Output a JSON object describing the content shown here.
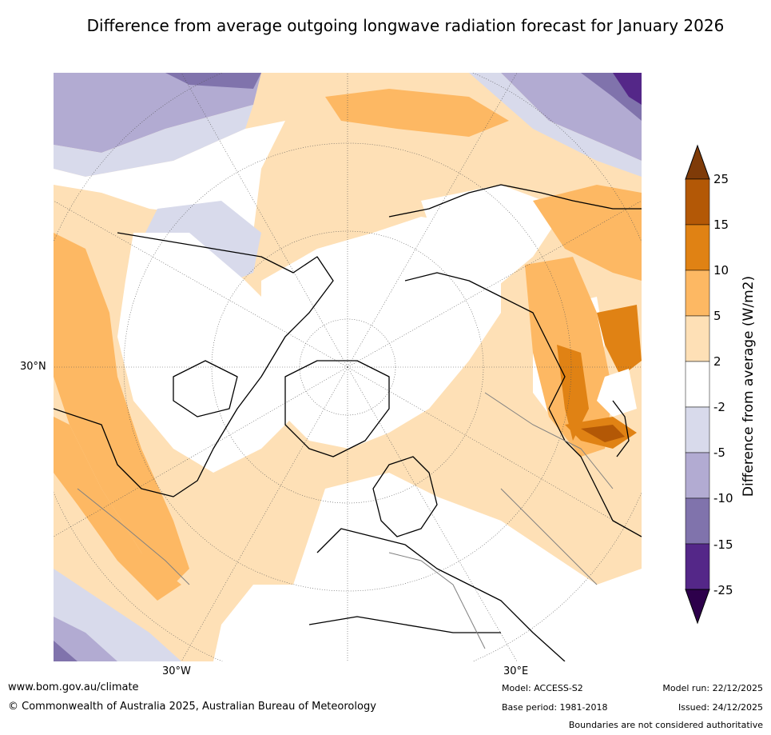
{
  "title": "Difference from average outgoing longwave radiation forecast for January 2026",
  "map": {
    "projection_labels": {
      "lat_30n": "30°N",
      "lon_30w": "30°W",
      "lon_30e": "30°E"
    }
  },
  "colorbar": {
    "title": "Difference from average (W/m2)",
    "ticks": [
      "25",
      "15",
      "10",
      "5",
      "2",
      "-2",
      "-5",
      "-10",
      "-15",
      "-25"
    ],
    "colors": {
      "gt25": "#7f3b08",
      "15_25": "#b35806",
      "10_15": "#e08214",
      "5_10": "#fdb863",
      "2_5": "#fee0b6",
      "m2_2": "#ffffff",
      "m5_m2": "#d8daeb",
      "m10_m5": "#b2abd2",
      "m15_m10": "#8073ac",
      "m25_m15": "#542788",
      "lt_m25": "#2d004b"
    }
  },
  "footer": {
    "url": "www.bom.gov.au/climate",
    "copyright": "© Commonwealth of Australia 2025, Australian Bureau of Meteorology",
    "model": "Model: ACCESS-S2",
    "base_period": "Base period: 1981-2018",
    "model_run": "Model run: 22/12/2025",
    "issued": "Issued: 24/12/2025",
    "disclaimer": "Boundaries are not considered authoritative"
  }
}
